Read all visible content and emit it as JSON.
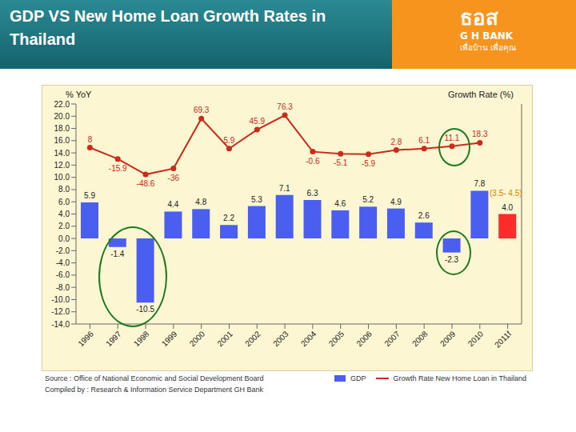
{
  "chart_data": {
    "type": "bar",
    "title": "GDP VS New Home Loan Growth Rates in Thailand",
    "logo": {
      "name": "ธอส",
      "sub": "G H BANK",
      "slogan": "เพื่อบ้าน เพื่อคุณ"
    },
    "y_label": "% YoY",
    "y2_label": "Growth Rate (%)",
    "categories": [
      "1996",
      "1997",
      "1998",
      "1999",
      "2000",
      "2001",
      "2002",
      "2003",
      "2004",
      "2005",
      "2006",
      "2007",
      "2008",
      "2009",
      "2010",
      "2011f"
    ],
    "ylim": [
      -14,
      22
    ],
    "yticks": [
      {
        "value": -14,
        "label": "-14.0"
      },
      {
        "value": -12,
        "label": "-12.0"
      },
      {
        "value": -10,
        "label": "-10.0"
      },
      {
        "value": -8,
        "label": "-8.0"
      },
      {
        "value": -6,
        "label": "-6.0"
      },
      {
        "value": -4,
        "label": "-4.0"
      },
      {
        "value": -2,
        "label": "-2.0"
      },
      {
        "value": 0,
        "label": "0.0"
      },
      {
        "value": 2,
        "label": "2.0"
      },
      {
        "value": 4,
        "label": "4.0"
      },
      {
        "value": 6,
        "label": "6.0"
      },
      {
        "value": 8,
        "label": "8.0"
      },
      {
        "value": 10,
        "label": "10.0"
      },
      {
        "value": 12,
        "label": "12.0"
      },
      {
        "value": 14,
        "label": "14.0"
      },
      {
        "value": 16,
        "label": "16.0"
      },
      {
        "value": 18,
        "label": "18.0"
      },
      {
        "value": 20,
        "label": "20.0"
      },
      {
        "value": 22,
        "label": "22.0"
      }
    ],
    "y2lim": [
      -364,
      100
    ],
    "grid": false,
    "legend": "bottom",
    "series": [
      {
        "name": "GDP",
        "type": "bar",
        "color": "#4a5ef0",
        "colors": [
          "#4a5ef0",
          "#4a5ef0",
          "#4a5ef0",
          "#4a5ef0",
          "#4a5ef0",
          "#4a5ef0",
          "#4a5ef0",
          "#4a5ef0",
          "#4a5ef0",
          "#4a5ef0",
          "#4a5ef0",
          "#4a5ef0",
          "#4a5ef0",
          "#4a5ef0",
          "#4a5ef0",
          "#ff2a2a"
        ],
        "values": [
          5.9,
          -1.4,
          -10.5,
          4.4,
          4.8,
          2.2,
          5.3,
          7.1,
          6.3,
          4.6,
          5.2,
          4.9,
          2.6,
          -2.3,
          7.8,
          4.0
        ],
        "value_labels": [
          "5.9",
          "-1.4",
          "-10.5",
          "4.4",
          "4.8",
          "2.2",
          "5.3",
          "7.1",
          "6.3",
          "4.6",
          "5.2",
          "4.9",
          "2.6",
          "-2.3",
          "7.8",
          "4.0"
        ],
        "data_labels": true
      },
      {
        "name": "Growth Rate New Home Loan in Thailand",
        "type": "line",
        "axis": "y2",
        "color": "#cc2a1a",
        "marker": "circle",
        "values": [
          8,
          -15.9,
          -48.6,
          -36,
          69.3,
          5.9,
          45.9,
          76.3,
          -0.6,
          -5.1,
          -5.9,
          2.8,
          6.1,
          11.1,
          18.3,
          null
        ],
        "data_labels": true
      }
    ],
    "annotations": [
      {
        "text": "(3.5- 4.5)"
      }
    ],
    "source": "Source : Office of National Economic and Social Development Board",
    "compiled_by": "Compiled by : Research & Information Service Department GH Bank"
  }
}
